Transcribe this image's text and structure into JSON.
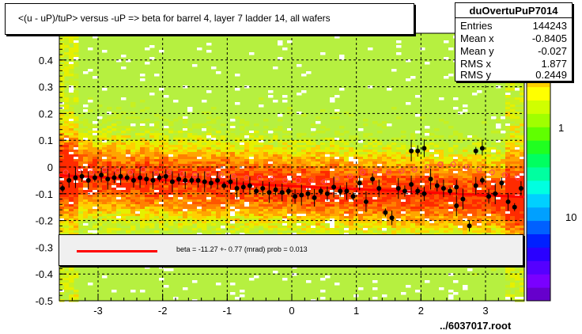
{
  "title": "<(u - uP)/tuP> versus  -uP => beta for barrel 4, layer 7 ladder 14, all wafers",
  "stats": {
    "name": "duOvertuPuP7014",
    "rows": [
      {
        "label": "Entries",
        "value": "144243"
      },
      {
        "label": "Mean x",
        "value": "-0.8405"
      },
      {
        "label": "Mean y",
        "value": "-0.027"
      },
      {
        "label": "RMS x",
        "value": "1.877"
      },
      {
        "label": "RMS y",
        "value": "0.2449"
      }
    ]
  },
  "legend": {
    "entry": "beta =  -11.27 +-  0.77 (mrad) prob = 0.013",
    "line_color": "#ff0000"
  },
  "footer": "../6037017.root",
  "chart_data": {
    "type": "heatmap",
    "title": "<(u - uP)/tuP> versus  -uP => beta for barrel 4, layer 7 ladder 14, all wafers",
    "xlim": [
      -3.6,
      3.6
    ],
    "ylim": [
      -0.5,
      0.5
    ],
    "x_ticks": [
      -3,
      -2,
      -1,
      0,
      1,
      2,
      3
    ],
    "y_ticks": [
      -0.5,
      -0.4,
      -0.3,
      -0.2,
      -0.1,
      0,
      0.1,
      0.2,
      0.3,
      0.4
    ],
    "grid": true,
    "z_scale": "log",
    "z_tick_labels": [
      "1",
      "10"
    ],
    "fit_line": {
      "x": [
        -3.6,
        3.6
      ],
      "y": [
        -0.031,
        -0.112
      ],
      "color": "#ff0000"
    },
    "profile_points": [
      {
        "x": -3.55,
        "y": -0.08
      },
      {
        "x": -3.45,
        "y": -0.05
      },
      {
        "x": -3.35,
        "y": -0.04
      },
      {
        "x": -3.25,
        "y": -0.035
      },
      {
        "x": -3.15,
        "y": -0.05
      },
      {
        "x": -3.05,
        "y": -0.04
      },
      {
        "x": -2.95,
        "y": -0.03
      },
      {
        "x": -2.85,
        "y": -0.045
      },
      {
        "x": -2.75,
        "y": -0.04
      },
      {
        "x": -2.65,
        "y": -0.035
      },
      {
        "x": -2.55,
        "y": -0.04
      },
      {
        "x": -2.45,
        "y": -0.05
      },
      {
        "x": -2.35,
        "y": -0.04
      },
      {
        "x": -2.25,
        "y": -0.045
      },
      {
        "x": -2.15,
        "y": -0.05
      },
      {
        "x": -2.05,
        "y": -0.04
      },
      {
        "x": -1.95,
        "y": -0.035
      },
      {
        "x": -1.85,
        "y": -0.055
      },
      {
        "x": -1.75,
        "y": -0.045
      },
      {
        "x": -1.65,
        "y": -0.05
      },
      {
        "x": -1.55,
        "y": -0.05
      },
      {
        "x": -1.45,
        "y": -0.05
      },
      {
        "x": -1.35,
        "y": -0.055
      },
      {
        "x": -1.25,
        "y": -0.06
      },
      {
        "x": -1.15,
        "y": -0.05
      },
      {
        "x": -1.05,
        "y": -0.07
      },
      {
        "x": -0.95,
        "y": -0.055
      },
      {
        "x": -0.85,
        "y": -0.08
      },
      {
        "x": -0.75,
        "y": -0.075
      },
      {
        "x": -0.65,
        "y": -0.07
      },
      {
        "x": -0.55,
        "y": -0.09
      },
      {
        "x": -0.45,
        "y": -0.08
      },
      {
        "x": -0.35,
        "y": -0.095
      },
      {
        "x": -0.25,
        "y": -0.085
      },
      {
        "x": -0.15,
        "y": -0.095
      },
      {
        "x": -0.05,
        "y": -0.09
      },
      {
        "x": 0.05,
        "y": -0.11
      },
      {
        "x": 0.15,
        "y": -0.105
      },
      {
        "x": 0.25,
        "y": -0.1
      },
      {
        "x": 0.35,
        "y": -0.115
      },
      {
        "x": 0.45,
        "y": -0.09
      },
      {
        "x": 0.55,
        "y": -0.1
      },
      {
        "x": 0.65,
        "y": -0.075
      },
      {
        "x": 0.75,
        "y": -0.09
      },
      {
        "x": 0.85,
        "y": -0.09
      },
      {
        "x": 0.95,
        "y": -0.11
      },
      {
        "x": 1.05,
        "y": -0.06
      },
      {
        "x": 1.15,
        "y": -0.13
      },
      {
        "x": 1.25,
        "y": -0.045
      },
      {
        "x": 1.35,
        "y": -0.08
      },
      {
        "x": 1.45,
        "y": -0.17
      },
      {
        "x": 1.55,
        "y": -0.19
      },
      {
        "x": 1.65,
        "y": -0.08
      },
      {
        "x": 1.75,
        "y": -0.09
      },
      {
        "x": 1.85,
        "y": -0.065
      },
      {
        "x": 1.95,
        "y": -0.09
      },
      {
        "x": 2.05,
        "y": -0.1
      },
      {
        "x": 2.15,
        "y": -0.045
      },
      {
        "x": 2.25,
        "y": -0.07
      },
      {
        "x": 2.35,
        "y": -0.08
      },
      {
        "x": 2.45,
        "y": -0.09
      },
      {
        "x": 2.55,
        "y": -0.075
      },
      {
        "x": 2.65,
        "y": -0.12
      },
      {
        "x": 2.75,
        "y": -0.22
      },
      {
        "x": 2.85,
        "y": -0.07
      },
      {
        "x": 2.95,
        "y": -0.05
      },
      {
        "x": 3.05,
        "y": -0.11
      },
      {
        "x": 3.15,
        "y": -0.1
      },
      {
        "x": 3.25,
        "y": -0.06
      },
      {
        "x": 3.35,
        "y": -0.13
      },
      {
        "x": 3.45,
        "y": -0.15
      },
      {
        "x": 3.55,
        "y": -0.08
      },
      {
        "x": 1.85,
        "y": 0.06
      },
      {
        "x": 1.95,
        "y": 0.06
      },
      {
        "x": 2.05,
        "y": 0.07
      },
      {
        "x": 2.85,
        "y": 0.06
      },
      {
        "x": 2.95,
        "y": 0.07
      },
      {
        "x": 2.55,
        "y": -0.145
      }
    ],
    "open_points": [
      {
        "x": -3.5,
        "y": -0.02
      },
      {
        "x": -3.3,
        "y": -0.015
      },
      {
        "x": -3.1,
        "y": -0.02
      },
      {
        "x": -2.9,
        "y": -0.01
      },
      {
        "x": -2.7,
        "y": -0.015
      },
      {
        "x": -2.5,
        "y": -0.02
      },
      {
        "x": -2.3,
        "y": -0.01
      },
      {
        "x": -2.1,
        "y": -0.02
      },
      {
        "x": -1.9,
        "y": -0.02
      },
      {
        "x": -1.7,
        "y": -0.025
      },
      {
        "x": -1.5,
        "y": -0.03
      },
      {
        "x": -1.3,
        "y": -0.025
      },
      {
        "x": -1.1,
        "y": -0.03
      },
      {
        "x": -0.9,
        "y": -0.035
      },
      {
        "x": -0.7,
        "y": -0.04
      },
      {
        "x": -0.5,
        "y": -0.04
      },
      {
        "x": -0.3,
        "y": -0.045
      },
      {
        "x": -0.1,
        "y": -0.05
      },
      {
        "x": 0.1,
        "y": -0.05
      },
      {
        "x": 0.3,
        "y": -0.05
      },
      {
        "x": 0.5,
        "y": -0.055
      },
      {
        "x": 0.7,
        "y": -0.045
      },
      {
        "x": 0.9,
        "y": -0.035
      },
      {
        "x": 1.1,
        "y": -0.02
      },
      {
        "x": 1.3,
        "y": -0.015
      },
      {
        "x": 1.5,
        "y": -0.02
      },
      {
        "x": 1.7,
        "y": -0.015
      },
      {
        "x": 1.9,
        "y": -0.01
      },
      {
        "x": 2.1,
        "y": 0.0
      },
      {
        "x": 2.3,
        "y": 0.01
      },
      {
        "x": 2.5,
        "y": 0.01
      },
      {
        "x": 2.7,
        "y": 0.0
      },
      {
        "x": 2.9,
        "y": -0.01
      },
      {
        "x": 3.1,
        "y": -0.02
      },
      {
        "x": 3.3,
        "y": -0.03
      },
      {
        "x": 3.5,
        "y": -0.04
      }
    ]
  }
}
